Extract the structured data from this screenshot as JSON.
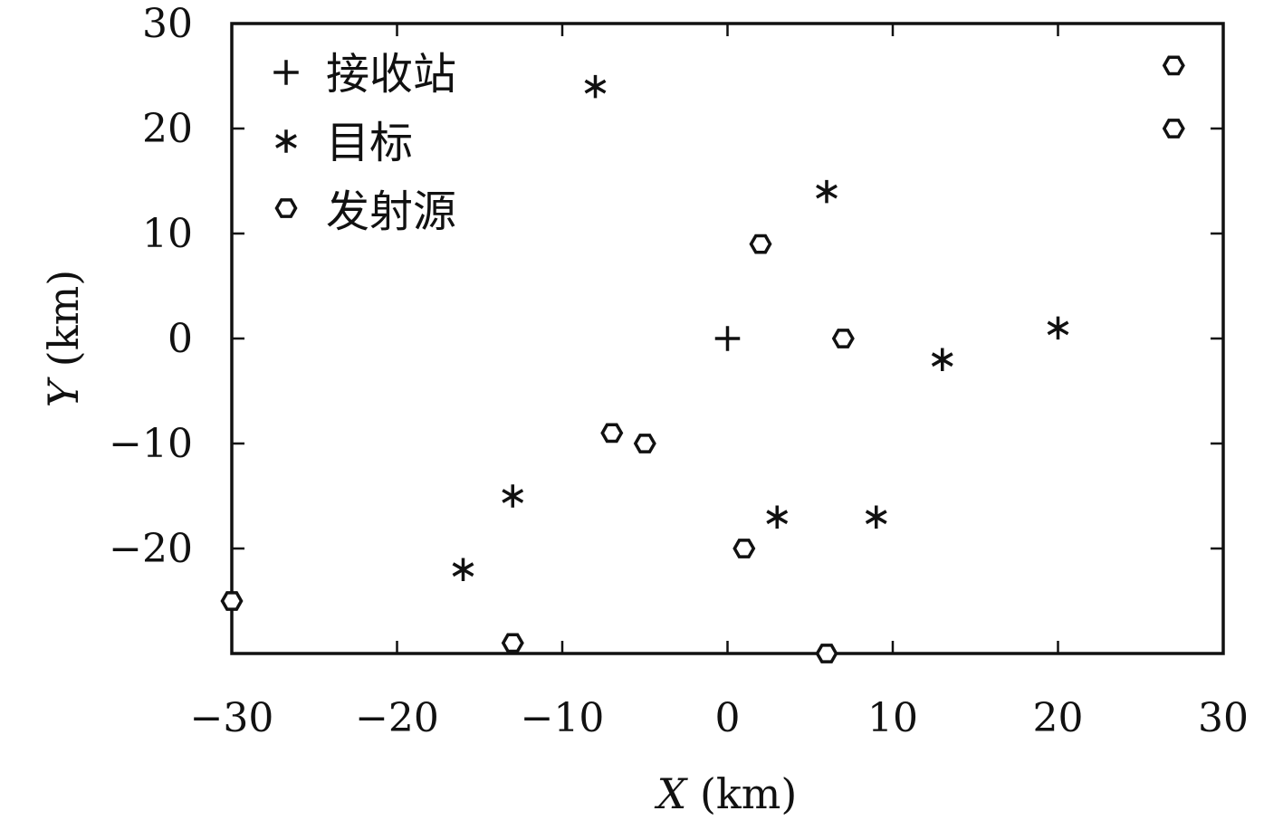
{
  "chart_data": {
    "type": "scatter",
    "title": "",
    "xlabel_var": "X",
    "xlabel_unit": "(km)",
    "ylabel_var": "Y",
    "ylabel_unit": "(km)",
    "xlim": [
      -30,
      30
    ],
    "ylim": [
      -30,
      30
    ],
    "xticks": [
      -30,
      -20,
      -10,
      0,
      10,
      20,
      30
    ],
    "yticks": [
      -20,
      -10,
      0,
      10,
      20,
      30
    ],
    "xtick_labels": [
      "−30",
      "−20",
      "−10",
      "0",
      "10",
      "20",
      "30"
    ],
    "ytick_labels": [
      "−20",
      "−10",
      "0",
      "10",
      "20",
      "30"
    ],
    "grid": false,
    "legend_position": "top-left",
    "series": [
      {
        "name": "接收站",
        "marker": "plus",
        "points": [
          {
            "x": 0,
            "y": 0
          }
        ]
      },
      {
        "name": "目标",
        "marker": "asterisk",
        "points": [
          {
            "x": -8,
            "y": 24
          },
          {
            "x": 6,
            "y": 14
          },
          {
            "x": 13,
            "y": -2
          },
          {
            "x": 20,
            "y": 1
          },
          {
            "x": -13,
            "y": -15
          },
          {
            "x": -16,
            "y": -22
          },
          {
            "x": 3,
            "y": -17
          },
          {
            "x": 9,
            "y": -17
          }
        ]
      },
      {
        "name": "发射源",
        "marker": "hexagon",
        "points": [
          {
            "x": 27,
            "y": 26
          },
          {
            "x": 27,
            "y": 20
          },
          {
            "x": 2,
            "y": 9
          },
          {
            "x": 7,
            "y": 0
          },
          {
            "x": -7,
            "y": -9
          },
          {
            "x": -5,
            "y": -10
          },
          {
            "x": 1,
            "y": -20
          },
          {
            "x": -30,
            "y": -25
          },
          {
            "x": -13,
            "y": -29
          },
          {
            "x": 6,
            "y": -30
          }
        ]
      }
    ]
  }
}
